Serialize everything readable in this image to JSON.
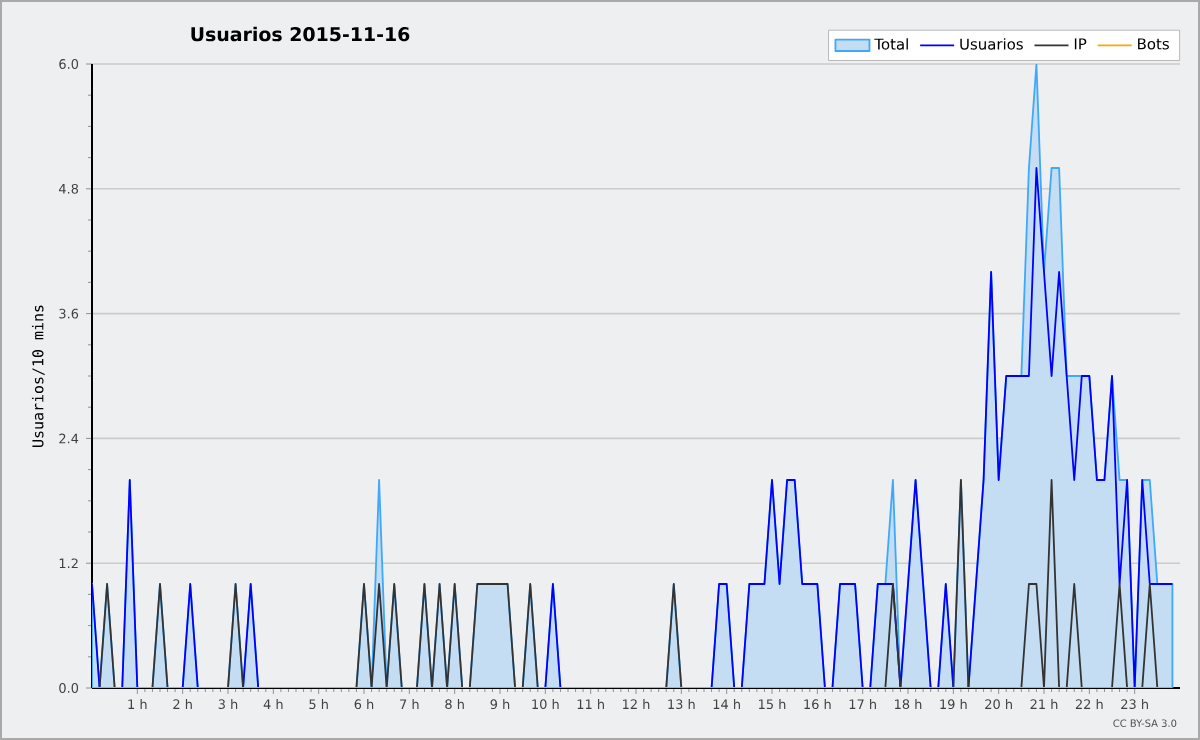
{
  "chart_data": {
    "type": "line",
    "title": "Usuarios  2015-11-16",
    "ylabel": "Usuarios/10 mins",
    "annotations": [
      "CC BY-SA 3.0"
    ],
    "xlim": [
      0,
      24
    ],
    "xticks": [
      {
        "value": 1,
        "label": "1 h"
      },
      {
        "value": 2,
        "label": "2 h"
      },
      {
        "value": 3,
        "label": "3 h"
      },
      {
        "value": 4,
        "label": "4 h"
      },
      {
        "value": 5,
        "label": "5 h"
      },
      {
        "value": 6,
        "label": "6 h"
      },
      {
        "value": 7,
        "label": "7 h"
      },
      {
        "value": 8,
        "label": "8 h"
      },
      {
        "value": 9,
        "label": "9 h"
      },
      {
        "value": 10,
        "label": "10 h"
      },
      {
        "value": 11,
        "label": "11 h"
      },
      {
        "value": 12,
        "label": "12 h"
      },
      {
        "value": 13,
        "label": "13 h"
      },
      {
        "value": 14,
        "label": "14 h"
      },
      {
        "value": 15,
        "label": "15 h"
      },
      {
        "value": 16,
        "label": "16 h"
      },
      {
        "value": 17,
        "label": "17 h"
      },
      {
        "value": 18,
        "label": "18 h"
      },
      {
        "value": 19,
        "label": "19 h"
      },
      {
        "value": 20,
        "label": "20 h"
      },
      {
        "value": 21,
        "label": "21 h"
      },
      {
        "value": 22,
        "label": "22 h"
      },
      {
        "value": 23,
        "label": "23 h"
      }
    ],
    "ylim": [
      0,
      6
    ],
    "yticks": [
      {
        "value": 0,
        "label": "0.0"
      },
      {
        "value": 1.2,
        "label": "1.2"
      },
      {
        "value": 2.4,
        "label": "2.4"
      },
      {
        "value": 3.6,
        "label": "3.6"
      },
      {
        "value": 4.8,
        "label": "4.8"
      },
      {
        "value": 6,
        "label": "6.0"
      }
    ],
    "grid": "y",
    "legend": "top right",
    "series": [
      {
        "name": "Total",
        "type": "area",
        "color": "#c4ddf2",
        "x": [
          0,
          0.167,
          0.333,
          0.5,
          0.667,
          0.833,
          1,
          1.333,
          1.5,
          1.667,
          2,
          2.167,
          2.333,
          3,
          3.167,
          3.333,
          3.5,
          3.667,
          5.833,
          6,
          6.167,
          6.333,
          6.5,
          6.667,
          6.833,
          7.167,
          7.333,
          7.5,
          7.667,
          7.833,
          8,
          8.167,
          8.333,
          8.5,
          9.167,
          9.333,
          9.5,
          9.667,
          9.833,
          10,
          10.167,
          10.333,
          12.667,
          12.833,
          13,
          13.667,
          13.833,
          14,
          14.167,
          14.333,
          14.5,
          14.833,
          15,
          15.167,
          15.333,
          15.5,
          15.667,
          16,
          16.167,
          16.333,
          16.5,
          16.833,
          17,
          17.167,
          17.333,
          17.5,
          17.667,
          17.833,
          18.167,
          18.5,
          18.667,
          18.833,
          19,
          19.167,
          19.333,
          19.5,
          19.667,
          19.833,
          20,
          20.167,
          20.5,
          20.667,
          20.833,
          21,
          21.167,
          21.333,
          21.5,
          22,
          22.167,
          22.333,
          22.5,
          22.667,
          22.833,
          23,
          23.167,
          23.333,
          23.5,
          23.833
        ],
        "values": [
          1,
          0,
          1,
          0,
          0,
          2,
          0,
          0,
          1,
          0,
          0,
          1,
          0,
          0,
          1,
          0,
          1,
          0,
          0,
          1,
          0,
          2,
          0,
          1,
          0,
          0,
          1,
          0,
          1,
          0,
          1,
          0,
          0,
          1,
          1,
          0,
          0,
          1,
          0,
          0,
          1,
          0,
          0,
          1,
          0,
          0,
          1,
          1,
          0,
          0,
          1,
          1,
          2,
          1,
          2,
          2,
          1,
          1,
          0,
          0,
          1,
          1,
          0,
          0,
          1,
          1,
          2,
          0,
          2,
          0,
          0,
          1,
          0,
          2,
          0,
          1,
          2,
          4,
          2,
          3,
          3,
          5,
          6,
          4,
          5,
          5,
          3,
          3,
          2,
          2,
          3,
          2,
          2,
          0,
          2,
          2,
          1,
          1
        ]
      },
      {
        "name": "Usuarios",
        "color": "#0000ff",
        "x": [
          0,
          0.167,
          0.667,
          0.833,
          1,
          2,
          2.167,
          2.333,
          3.333,
          3.5,
          3.667,
          10,
          10.167,
          10.333,
          13.667,
          13.833,
          14,
          14.167,
          14.333,
          14.5,
          14.833,
          15,
          15.167,
          15.333,
          15.5,
          15.667,
          16,
          16.167,
          16.333,
          16.5,
          16.833,
          17,
          17.167,
          17.333,
          17.667,
          17.833,
          18.167,
          18.5,
          18.667,
          18.833,
          19,
          19.333,
          19.5,
          19.667,
          19.833,
          20,
          20.167,
          20.667,
          20.833,
          21,
          21.167,
          21.333,
          21.5,
          21.667,
          21.833,
          22,
          22.167,
          22.333,
          22.5,
          22.667,
          22.833,
          23,
          23.167,
          23.333,
          23.833
        ],
        "values": [
          1,
          0,
          0,
          2,
          0,
          0,
          1,
          0,
          0,
          1,
          0,
          0,
          1,
          0,
          0,
          1,
          1,
          0,
          0,
          1,
          1,
          2,
          1,
          2,
          2,
          1,
          1,
          0,
          0,
          1,
          1,
          0,
          0,
          1,
          1,
          0,
          2,
          0,
          0,
          1,
          0,
          0,
          1,
          2,
          4,
          2,
          3,
          3,
          5,
          4,
          3,
          4,
          3,
          2,
          3,
          3,
          2,
          2,
          3,
          1,
          2,
          0,
          2,
          1,
          1
        ]
      },
      {
        "name": "IP",
        "color": "#333333",
        "x": [
          0,
          0.167,
          0.333,
          0.5,
          1.333,
          1.5,
          1.667,
          3,
          3.167,
          3.333,
          5.833,
          6,
          6.167,
          6.333,
          6.5,
          6.667,
          6.833,
          7.167,
          7.333,
          7.5,
          7.667,
          7.833,
          8,
          8.167,
          8.333,
          8.5,
          9.167,
          9.333,
          9.5,
          9.667,
          9.833,
          12.667,
          12.833,
          13,
          17.5,
          17.667,
          17.833,
          19,
          19.167,
          19.333,
          20.5,
          20.667,
          20.833,
          21,
          21.167,
          21.333,
          21.5,
          21.667,
          21.833,
          22.5,
          22.667,
          22.833,
          23.167,
          23.333,
          23.5,
          23.833
        ],
        "values": [
          0,
          0,
          1,
          0,
          0,
          1,
          0,
          0,
          1,
          0,
          0,
          1,
          0,
          1,
          0,
          1,
          0,
          0,
          1,
          0,
          1,
          0,
          1,
          0,
          0,
          1,
          1,
          0,
          0,
          1,
          0,
          0,
          1,
          0,
          0,
          1,
          0,
          0,
          2,
          0,
          0,
          1,
          1,
          0,
          2,
          0,
          0,
          1,
          0,
          0,
          1,
          0,
          0,
          1,
          0,
          0
        ]
      },
      {
        "name": "Bots",
        "color": "#ffa500",
        "x": [
          0,
          23.833
        ],
        "values": [
          0,
          0
        ]
      }
    ]
  }
}
